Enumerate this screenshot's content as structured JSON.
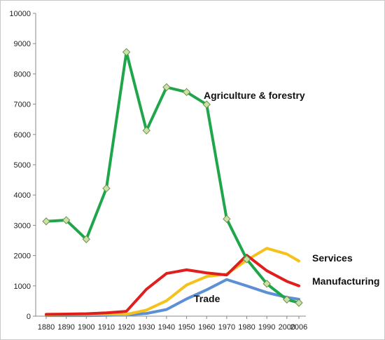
{
  "chart_data": {
    "type": "line",
    "title": "",
    "xlabel": "",
    "ylabel": "",
    "ylim": [
      0,
      10000
    ],
    "yticks": [
      0,
      1000,
      2000,
      3000,
      4000,
      5000,
      6000,
      7000,
      8000,
      9000,
      10000
    ],
    "categories": [
      "1880",
      "1890",
      "1900",
      "1910",
      "1920",
      "1930",
      "1940",
      "1950",
      "1960",
      "1970",
      "1980",
      "1990",
      "2000",
      "2006"
    ],
    "x": [
      1880,
      1890,
      1900,
      1910,
      1920,
      1930,
      1940,
      1950,
      1960,
      1970,
      1980,
      1990,
      2000,
      2006
    ],
    "grid": false,
    "legend": "none (labels placed beside lines)",
    "series": [
      {
        "name": "Agriculture & forestry",
        "color": "#1fa64a",
        "markers": "diamond",
        "marker_color": "#c9e2a8",
        "values": [
          3130,
          3170,
          2540,
          4220,
          8720,
          6130,
          7560,
          7400,
          6990,
          3210,
          1880,
          1070,
          550,
          440
        ]
      },
      {
        "name": "Services",
        "color": "#f5c21b",
        "markers": "none",
        "values": [
          50,
          60,
          60,
          70,
          60,
          200,
          510,
          1030,
          1310,
          1390,
          1850,
          2240,
          2050,
          1820
        ]
      },
      {
        "name": "Manufacturing",
        "color": "#e01e1e",
        "markers": "none",
        "values": [
          60,
          70,
          80,
          110,
          160,
          890,
          1410,
          1530,
          1430,
          1360,
          2010,
          1500,
          1150,
          1000
        ]
      },
      {
        "name": "Trade",
        "color": "#5b8fd6",
        "markers": "none",
        "values": [
          20,
          20,
          20,
          30,
          40,
          90,
          220,
          570,
          870,
          1210,
          1000,
          780,
          620,
          560
        ]
      }
    ]
  }
}
